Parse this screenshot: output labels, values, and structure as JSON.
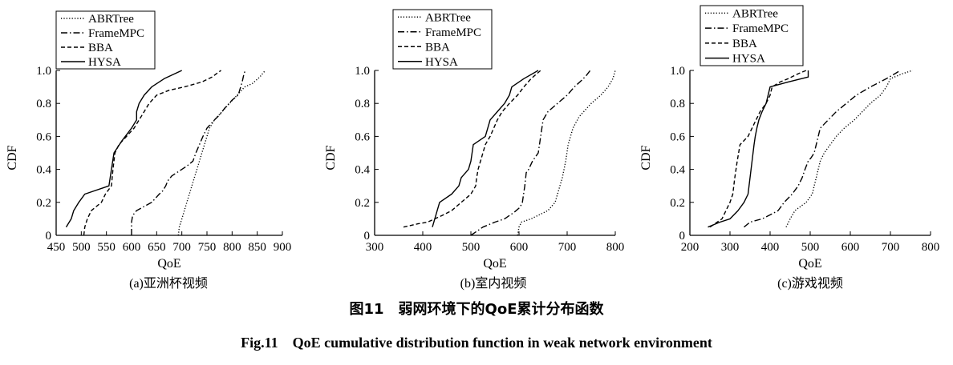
{
  "figure": {
    "caption_cn": "图11　弱网环境下的QoE累计分布函数",
    "caption_en": "Fig.11　QoE cumulative distribution function in weak network environment"
  },
  "series_styles": [
    {
      "name": "ABRTree",
      "dash": "dotted"
    },
    {
      "name": "FrameMPC",
      "dash": "dash-dot"
    },
    {
      "name": "BBA",
      "dash": "dashed"
    },
    {
      "name": "HYSA",
      "dash": "solid"
    }
  ],
  "chart_data": [
    {
      "type": "line",
      "subcaption": "(a)亚洲杯视频",
      "xlabel": "QoE",
      "ylabel": "CDF",
      "xlim": [
        450,
        900
      ],
      "ylim": [
        0,
        1.0
      ],
      "xticks": [
        450,
        500,
        550,
        600,
        650,
        700,
        750,
        800,
        850,
        900
      ],
      "yticks": [
        0,
        0.2,
        0.4,
        0.6,
        0.8,
        1.0
      ],
      "ytick_labels": [
        "0",
        "0.2",
        "0.4",
        "0.6",
        "0.8",
        "1.0"
      ],
      "grid": false,
      "legend": "top-left",
      "series": [
        {
          "name": "ABRTree",
          "points": [
            [
              693,
              0
            ],
            [
              695,
              0.05
            ],
            [
              700,
              0.1
            ],
            [
              705,
              0.15
            ],
            [
              710,
              0.2
            ],
            [
              717,
              0.27
            ],
            [
              725,
              0.35
            ],
            [
              730,
              0.4
            ],
            [
              735,
              0.45
            ],
            [
              740,
              0.5
            ],
            [
              745,
              0.55
            ],
            [
              750,
              0.6
            ],
            [
              755,
              0.65
            ],
            [
              765,
              0.7
            ],
            [
              780,
              0.75
            ],
            [
              795,
              0.8
            ],
            [
              810,
              0.85
            ],
            [
              825,
              0.9
            ],
            [
              840,
              0.92
            ],
            [
              855,
              0.96
            ],
            [
              866,
              1.0
            ]
          ]
        },
        {
          "name": "FrameMPC",
          "points": [
            [
              600,
              0
            ],
            [
              600,
              0.08
            ],
            [
              602,
              0.12
            ],
            [
              610,
              0.15
            ],
            [
              640,
              0.2
            ],
            [
              655,
              0.25
            ],
            [
              662,
              0.27
            ],
            [
              668,
              0.3
            ],
            [
              672,
              0.33
            ],
            [
              680,
              0.36
            ],
            [
              700,
              0.4
            ],
            [
              710,
              0.42
            ],
            [
              722,
              0.45
            ],
            [
              728,
              0.5
            ],
            [
              735,
              0.55
            ],
            [
              742,
              0.6
            ],
            [
              750,
              0.65
            ],
            [
              765,
              0.7
            ],
            [
              775,
              0.73
            ],
            [
              785,
              0.77
            ],
            [
              800,
              0.82
            ],
            [
              812,
              0.85
            ],
            [
              817,
              0.9
            ],
            [
              820,
              0.93
            ],
            [
              823,
              0.97
            ],
            [
              826,
              1.0
            ]
          ]
        },
        {
          "name": "BBA",
          "points": [
            [
              505,
              0
            ],
            [
              507,
              0.05
            ],
            [
              512,
              0.1
            ],
            [
              520,
              0.15
            ],
            [
              540,
              0.2
            ],
            [
              548,
              0.25
            ],
            [
              560,
              0.3
            ],
            [
              563,
              0.4
            ],
            [
              567,
              0.5
            ],
            [
              575,
              0.55
            ],
            [
              590,
              0.6
            ],
            [
              605,
              0.65
            ],
            [
              615,
              0.7
            ],
            [
              625,
              0.75
            ],
            [
              635,
              0.8
            ],
            [
              650,
              0.85
            ],
            [
              675,
              0.88
            ],
            [
              705,
              0.9
            ],
            [
              740,
              0.93
            ],
            [
              760,
              0.96
            ],
            [
              778,
              1.0
            ]
          ]
        },
        {
          "name": "HYSA",
          "points": [
            [
              470,
              0.05
            ],
            [
              480,
              0.1
            ],
            [
              485,
              0.15
            ],
            [
              495,
              0.2
            ],
            [
              507,
              0.25
            ],
            [
              555,
              0.3
            ],
            [
              560,
              0.4
            ],
            [
              565,
              0.5
            ],
            [
              580,
              0.57
            ],
            [
              600,
              0.65
            ],
            [
              610,
              0.7
            ],
            [
              610,
              0.75
            ],
            [
              615,
              0.8
            ],
            [
              625,
              0.85
            ],
            [
              640,
              0.9
            ],
            [
              665,
              0.95
            ],
            [
              700,
              1.0
            ]
          ]
        }
      ]
    },
    {
      "type": "line",
      "subcaption": "(b)室内视频",
      "xlabel": "QoE",
      "ylabel": "CDF",
      "xlim": [
        300,
        800
      ],
      "ylim": [
        0,
        1.0
      ],
      "xticks": [
        300,
        400,
        500,
        600,
        700,
        800
      ],
      "yticks": [
        0,
        0.2,
        0.4,
        0.6,
        0.8,
        1.0
      ],
      "ytick_labels": [
        "0",
        "0.2",
        "0.4",
        "0.6",
        "0.8",
        "1.0"
      ],
      "grid": false,
      "legend": "top-left",
      "series": [
        {
          "name": "ABRTree",
          "points": [
            [
              597,
              0
            ],
            [
              600,
              0.05
            ],
            [
              605,
              0.08
            ],
            [
              625,
              0.1
            ],
            [
              660,
              0.15
            ],
            [
              675,
              0.2
            ],
            [
              680,
              0.25
            ],
            [
              690,
              0.35
            ],
            [
              697,
              0.45
            ],
            [
              702,
              0.55
            ],
            [
              712,
              0.65
            ],
            [
              725,
              0.72
            ],
            [
              750,
              0.8
            ],
            [
              770,
              0.85
            ],
            [
              785,
              0.9
            ],
            [
              795,
              0.95
            ],
            [
              800,
              1.0
            ]
          ]
        },
        {
          "name": "FrameMPC",
          "points": [
            [
              500,
              0
            ],
            [
              525,
              0.05
            ],
            [
              550,
              0.08
            ],
            [
              570,
              0.1
            ],
            [
              590,
              0.14
            ],
            [
              602,
              0.17
            ],
            [
              607,
              0.2
            ],
            [
              612,
              0.3
            ],
            [
              615,
              0.38
            ],
            [
              620,
              0.4
            ],
            [
              628,
              0.45
            ],
            [
              640,
              0.5
            ],
            [
              645,
              0.6
            ],
            [
              650,
              0.7
            ],
            [
              660,
              0.75
            ],
            [
              680,
              0.8
            ],
            [
              700,
              0.85
            ],
            [
              715,
              0.9
            ],
            [
              730,
              0.94
            ],
            [
              740,
              0.97
            ],
            [
              748,
              1.0
            ]
          ]
        },
        {
          "name": "BBA",
          "points": [
            [
              360,
              0.05
            ],
            [
              390,
              0.07
            ],
            [
              410,
              0.08
            ],
            [
              440,
              0.12
            ],
            [
              460,
              0.15
            ],
            [
              480,
              0.2
            ],
            [
              500,
              0.25
            ],
            [
              510,
              0.3
            ],
            [
              512,
              0.35
            ],
            [
              515,
              0.4
            ],
            [
              520,
              0.45
            ],
            [
              530,
              0.55
            ],
            [
              540,
              0.6
            ],
            [
              555,
              0.7
            ],
            [
              565,
              0.75
            ],
            [
              580,
              0.8
            ],
            [
              597,
              0.85
            ],
            [
              610,
              0.9
            ],
            [
              625,
              0.95
            ],
            [
              645,
              1.0
            ]
          ]
        },
        {
          "name": "HYSA",
          "points": [
            [
              420,
              0.05
            ],
            [
              425,
              0.1
            ],
            [
              430,
              0.15
            ],
            [
              435,
              0.2
            ],
            [
              460,
              0.25
            ],
            [
              475,
              0.3
            ],
            [
              480,
              0.35
            ],
            [
              495,
              0.4
            ],
            [
              500,
              0.45
            ],
            [
              505,
              0.55
            ],
            [
              530,
              0.6
            ],
            [
              540,
              0.7
            ],
            [
              555,
              0.75
            ],
            [
              570,
              0.8
            ],
            [
              580,
              0.85
            ],
            [
              585,
              0.9
            ],
            [
              610,
              0.95
            ],
            [
              640,
              1.0
            ]
          ]
        }
      ]
    },
    {
      "type": "line",
      "subcaption": "(c)游戏视频",
      "xlabel": "QoE",
      "ylabel": "CDF",
      "xlim": [
        200,
        800
      ],
      "ylim": [
        0,
        1.0
      ],
      "xticks": [
        200,
        300,
        400,
        500,
        600,
        700,
        800
      ],
      "yticks": [
        0,
        0.2,
        0.4,
        0.6,
        0.8,
        1.0
      ],
      "ytick_labels": [
        "0",
        "0.2",
        "0.4",
        "0.6",
        "0.8",
        "1.0"
      ],
      "grid": false,
      "legend": "top-left",
      "series": [
        {
          "name": "ABRTree",
          "points": [
            [
              440,
              0.05
            ],
            [
              450,
              0.1
            ],
            [
              462,
              0.15
            ],
            [
              490,
              0.2
            ],
            [
              505,
              0.25
            ],
            [
              510,
              0.3
            ],
            [
              515,
              0.35
            ],
            [
              520,
              0.4
            ],
            [
              525,
              0.45
            ],
            [
              535,
              0.5
            ],
            [
              550,
              0.55
            ],
            [
              565,
              0.6
            ],
            [
              585,
              0.65
            ],
            [
              610,
              0.7
            ],
            [
              630,
              0.75
            ],
            [
              650,
              0.8
            ],
            [
              675,
              0.85
            ],
            [
              690,
              0.9
            ],
            [
              700,
              0.95
            ],
            [
              730,
              0.98
            ],
            [
              755,
              1.0
            ]
          ]
        },
        {
          "name": "FrameMPC",
          "points": [
            [
              335,
              0.05
            ],
            [
              350,
              0.08
            ],
            [
              380,
              0.1
            ],
            [
              405,
              0.13
            ],
            [
              420,
              0.15
            ],
            [
              435,
              0.2
            ],
            [
              455,
              0.25
            ],
            [
              470,
              0.3
            ],
            [
              480,
              0.35
            ],
            [
              487,
              0.4
            ],
            [
              495,
              0.45
            ],
            [
              502,
              0.47
            ],
            [
              510,
              0.5
            ],
            [
              515,
              0.55
            ],
            [
              525,
              0.65
            ],
            [
              545,
              0.7
            ],
            [
              565,
              0.75
            ],
            [
              590,
              0.8
            ],
            [
              615,
              0.85
            ],
            [
              650,
              0.9
            ],
            [
              690,
              0.95
            ],
            [
              725,
              1.0
            ]
          ]
        },
        {
          "name": "BBA",
          "points": [
            [
              250,
              0.05
            ],
            [
              262,
              0.07
            ],
            [
              280,
              0.1
            ],
            [
              290,
              0.15
            ],
            [
              300,
              0.2
            ],
            [
              307,
              0.25
            ],
            [
              312,
              0.35
            ],
            [
              318,
              0.45
            ],
            [
              325,
              0.55
            ],
            [
              345,
              0.6
            ],
            [
              355,
              0.65
            ],
            [
              365,
              0.7
            ],
            [
              375,
              0.75
            ],
            [
              390,
              0.8
            ],
            [
              400,
              0.85
            ],
            [
              405,
              0.9
            ],
            [
              425,
              0.93
            ],
            [
              445,
              0.95
            ],
            [
              470,
              0.98
            ],
            [
              490,
              1.0
            ]
          ]
        },
        {
          "name": "HYSA",
          "points": [
            [
              245,
              0.05
            ],
            [
              275,
              0.08
            ],
            [
              300,
              0.1
            ],
            [
              320,
              0.15
            ],
            [
              335,
              0.2
            ],
            [
              345,
              0.25
            ],
            [
              350,
              0.35
            ],
            [
              355,
              0.45
            ],
            [
              360,
              0.55
            ],
            [
              363,
              0.6
            ],
            [
              367,
              0.65
            ],
            [
              372,
              0.7
            ],
            [
              380,
              0.75
            ],
            [
              390,
              0.8
            ],
            [
              395,
              0.85
            ],
            [
              400,
              0.9
            ],
            [
              445,
              0.93
            ],
            [
              495,
              0.96
            ],
            [
              495,
              1.0
            ]
          ]
        }
      ]
    }
  ]
}
